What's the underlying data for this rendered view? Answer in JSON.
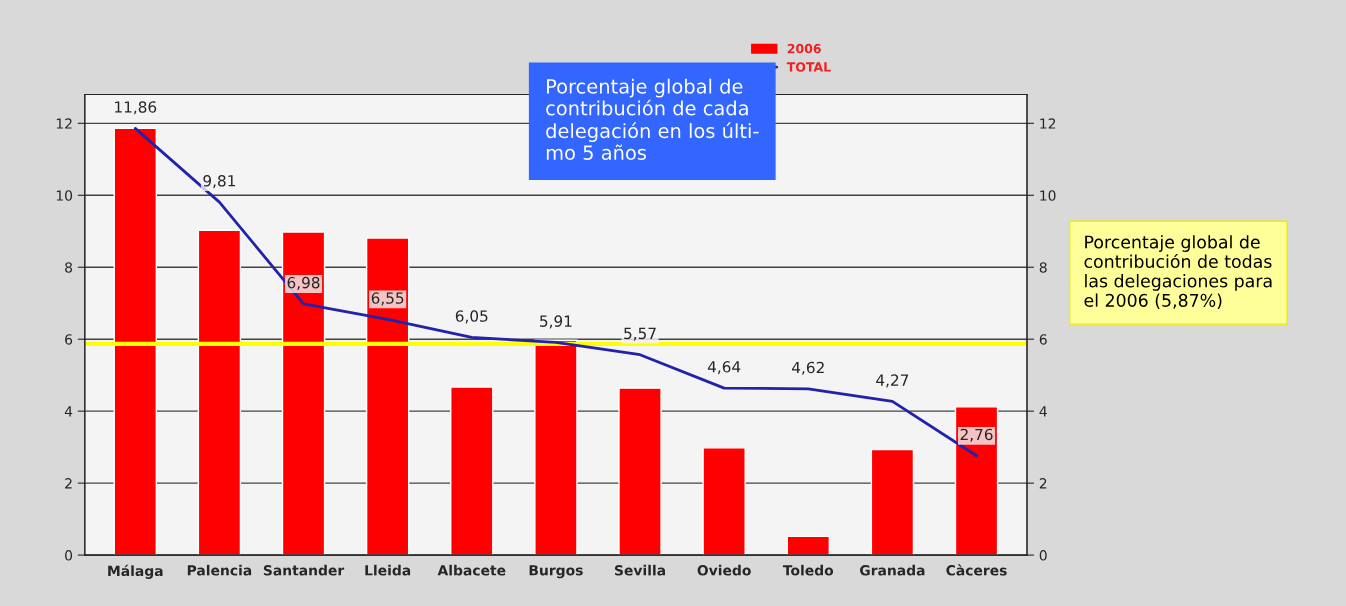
{
  "chart_data": {
    "type": "bar",
    "categories": [
      "Málaga",
      "Palencia",
      "Santander",
      "Lleida",
      "Albacete",
      "Burgos",
      "Sevilla",
      "Oviedo",
      "Toledo",
      "Granada",
      "Càceres"
    ],
    "series": [
      {
        "name": "2006",
        "color": "#ff0000",
        "values": [
          11.86,
          9.03,
          8.98,
          8.81,
          4.67,
          5.97,
          4.64,
          2.98,
          0.52,
          2.93,
          4.12
        ]
      },
      {
        "name": "TOTAL",
        "type": "line",
        "color": "#2222aa",
        "values": [
          11.86,
          9.81,
          6.98,
          6.55,
          6.05,
          5.91,
          5.57,
          4.64,
          4.62,
          4.27,
          2.76
        ],
        "value_labels": [
          "11,86",
          "9,81",
          "6,98",
          "6,55",
          "6,05",
          "5,91",
          "5,57",
          "4,64",
          "4,62",
          "4,27",
          "2,76"
        ]
      }
    ],
    "ylim": [
      0,
      12.8
    ],
    "yticks": [
      0,
      2,
      4,
      6,
      8,
      10,
      12
    ],
    "y2lim": [
      0,
      12.8
    ],
    "y2ticks": [
      0,
      2,
      4,
      6,
      8,
      10,
      12
    ],
    "ref_lines": [
      {
        "axis": "y",
        "value": 5.87,
        "color": "#ffff00"
      }
    ],
    "grid": "y",
    "legend": "top",
    "marker": "none",
    "line_style": "solid",
    "annotations": [
      "Porcentaje global de\ncontribución de cada\ndelegación en los últi-\nmo 5 años",
      "Porcentaje global de\ncontribución de todas\nlas delegaciones para\nel 2006 (5,87%)"
    ]
  }
}
